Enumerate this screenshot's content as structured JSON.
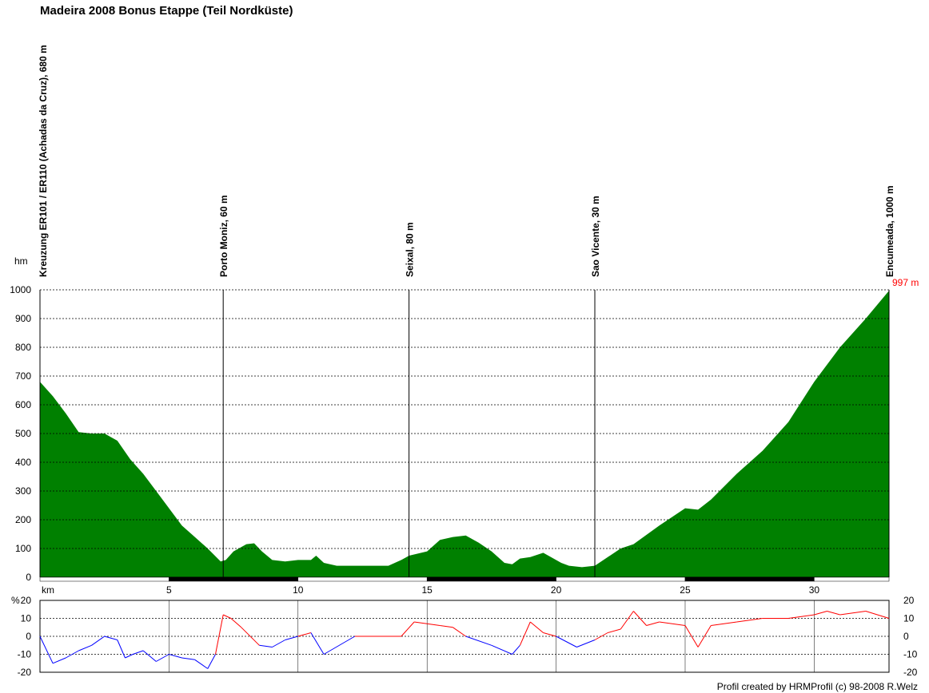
{
  "title": "Madeira 2008 Bonus Etappe (Teil Nordküste)",
  "footer": "Profil created by HRMProfil (c) 98-2008 R.Welz",
  "chart_data": [
    {
      "type": "area",
      "title": "Madeira 2008 Bonus Etappe (Teil Nordküste)",
      "ylabel": "hm",
      "xlabel": "km",
      "xlim": [
        0,
        32.9
      ],
      "ylim": [
        0,
        1000
      ],
      "y_ticks": [
        0,
        100,
        200,
        300,
        400,
        500,
        600,
        700,
        800,
        900,
        1000
      ],
      "x_ticks": [
        5,
        10,
        15,
        20,
        25,
        30
      ],
      "grid": "horizontal dashed",
      "fill_color": "#008000",
      "max_label": "997 m",
      "max_label_color": "#ff0000",
      "waypoints": [
        {
          "km": 0,
          "label": "Kreuzung ER101 / ER110 (Achadas da Cruz), 680 m"
        },
        {
          "km": 7.1,
          "label": "Porto Moniz, 60 m"
        },
        {
          "km": 14.3,
          "label": "Seixal, 80 m"
        },
        {
          "km": 21.5,
          "label": "Sao Vicente, 30 m"
        },
        {
          "km": 32.9,
          "label": "Encumeada, 1000 m"
        }
      ],
      "x": [
        0,
        0.5,
        1,
        1.5,
        2,
        2.5,
        3,
        3.5,
        4,
        4.5,
        5,
        5.5,
        6,
        6.5,
        7,
        7.2,
        7.5,
        8,
        8.3,
        8.6,
        9,
        9.5,
        10,
        10.5,
        10.7,
        11,
        11.5,
        12,
        13,
        13.5,
        14,
        14.3,
        15,
        15.5,
        16,
        16.5,
        17,
        17.5,
        18,
        18.3,
        18.6,
        19,
        19.5,
        19.8,
        20.2,
        20.5,
        21,
        21.5,
        22,
        22.5,
        23,
        24,
        25,
        25.5,
        26,
        27,
        28,
        29,
        30,
        31,
        32,
        32.9
      ],
      "values": [
        680,
        630,
        570,
        505,
        500,
        500,
        475,
        410,
        360,
        300,
        240,
        180,
        140,
        100,
        55,
        60,
        90,
        115,
        118,
        90,
        60,
        55,
        60,
        60,
        75,
        50,
        40,
        40,
        40,
        40,
        60,
        75,
        90,
        130,
        140,
        145,
        120,
        90,
        50,
        45,
        65,
        70,
        85,
        70,
        50,
        40,
        35,
        40,
        70,
        100,
        115,
        180,
        240,
        235,
        270,
        360,
        440,
        540,
        680,
        800,
        900,
        997
      ]
    },
    {
      "type": "line",
      "title": "",
      "ylabel": "%",
      "xlim": [
        0,
        32.9
      ],
      "ylim": [
        -20,
        20
      ],
      "y_ticks": [
        -20,
        -10,
        0,
        10,
        20
      ],
      "grid": "horizontal dashed",
      "color_negative": "#0000ff",
      "color_positive": "#ff0000",
      "x": [
        0,
        0.5,
        1,
        1.5,
        2,
        2.5,
        3,
        3.3,
        3.6,
        4,
        4.5,
        5,
        5.5,
        6,
        6.5,
        6.8,
        7.1,
        7.4,
        7.8,
        8.5,
        9,
        9.5,
        10,
        10.5,
        11,
        12.2,
        14,
        14.5,
        15.5,
        16,
        16.5,
        17.5,
        18.3,
        18.6,
        19,
        19.5,
        20,
        20.8,
        21.5,
        22,
        22.5,
        23,
        23.5,
        24,
        25,
        25.5,
        26,
        27,
        28,
        29,
        30,
        30.5,
        31,
        32,
        32.9
      ],
      "values": [
        0,
        -15,
        -12,
        -8,
        -5,
        0,
        -2,
        -12,
        -10,
        -8,
        -14,
        -10,
        -12,
        -13,
        -18,
        -10,
        12,
        10,
        5,
        -5,
        -6,
        -2,
        0,
        2,
        -10,
        0,
        0,
        8,
        6,
        5,
        0,
        -5,
        -10,
        -5,
        8,
        2,
        0,
        -6,
        -2,
        2,
        4,
        14,
        6,
        8,
        6,
        -6,
        6,
        8,
        10,
        10,
        12,
        14,
        12,
        14,
        10
      ]
    }
  ]
}
